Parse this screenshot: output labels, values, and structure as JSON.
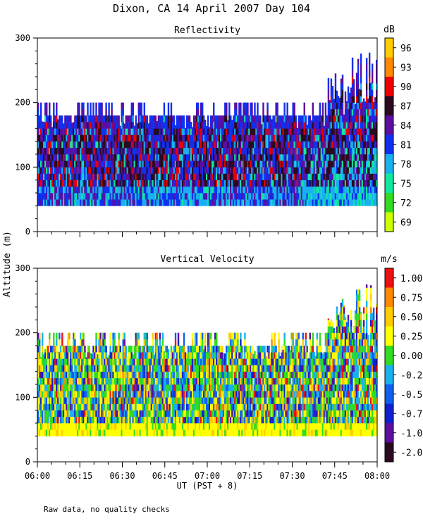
{
  "figure": {
    "title": "Dixon, CA 14 April 2007  Day 104",
    "footer_note": "Raw data, no quality checks",
    "ylabel": "Altitude (m)",
    "xlabel": "UT  (PST + 8)",
    "x_tick_labels": [
      "06:00",
      "06:15",
      "06:30",
      "06:45",
      "07:00",
      "07:15",
      "07:30",
      "07:45",
      "08:00"
    ]
  },
  "chart_data": [
    {
      "type": "heatmap",
      "title": "Reflectivity",
      "xlabel": "UT  (PST + 8)",
      "ylabel": "Altitude (m)",
      "x_range": [
        "06:00",
        "08:00"
      ],
      "ylim": [
        0,
        300
      ],
      "y_ticks": [
        0,
        100,
        200,
        300
      ],
      "colorbar": {
        "unit": "dB",
        "labels": [
          "96",
          "93",
          "90",
          "87",
          "84",
          "81",
          "78",
          "75",
          "72",
          "69"
        ],
        "colors": [
          "#ffcc00",
          "#ff8800",
          "#ee0000",
          "#2a0a1e",
          "#5b0ea0",
          "#1030f0",
          "#18b0f0",
          "#10e8a0",
          "#30dd20",
          "#ccff00"
        ]
      },
      "data_summary": {
        "echo_base_m": 40,
        "typical_echo_top_m": 180,
        "max_echo_top_m": 280,
        "dominant_values_dB": "81-87, with 90 cores near 100-150 m"
      }
    },
    {
      "type": "heatmap",
      "title": "Vertical Velocity",
      "xlabel": "UT  (PST + 8)",
      "ylabel": "Altitude (m)",
      "x_range": [
        "06:00",
        "08:00"
      ],
      "ylim": [
        0,
        300
      ],
      "y_ticks": [
        0,
        100,
        200,
        300
      ],
      "colorbar": {
        "unit": "m/s",
        "labels": [
          "1.00",
          "0.75",
          "0.50",
          "0.25",
          "0.00",
          "-0.25",
          "-0.50",
          "-0.75",
          "-1.00",
          "-2.00"
        ],
        "colors": [
          "#ee1010",
          "#ff8800",
          "#ffcc00",
          "#ffff00",
          "#30dd20",
          "#18b0f0",
          "#1060f0",
          "#1020d0",
          "#5b0ea0",
          "#2a0a1e"
        ]
      },
      "data_summary": {
        "echo_base_m": 40,
        "typical_echo_top_m": 180,
        "max_echo_top_m": 280,
        "dominant_values_m_s": "0.00 to 0.50 near base, -0.25 to 0.25 aloft"
      }
    }
  ]
}
